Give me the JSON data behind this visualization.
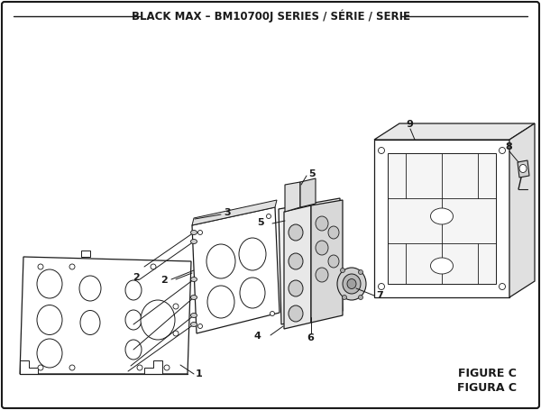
{
  "title": "BLACK MAX – BM10700J SERIES / SÉRIE / SERIE",
  "figure_label": "FIGURE C",
  "figura_label": "FIGURA C",
  "bg_color": "#ffffff",
  "line_color": "#1a1a1a",
  "title_fontsize": 8.5,
  "label_fontsize": 8,
  "figsize": [
    6.0,
    4.55
  ],
  "dpi": 100
}
